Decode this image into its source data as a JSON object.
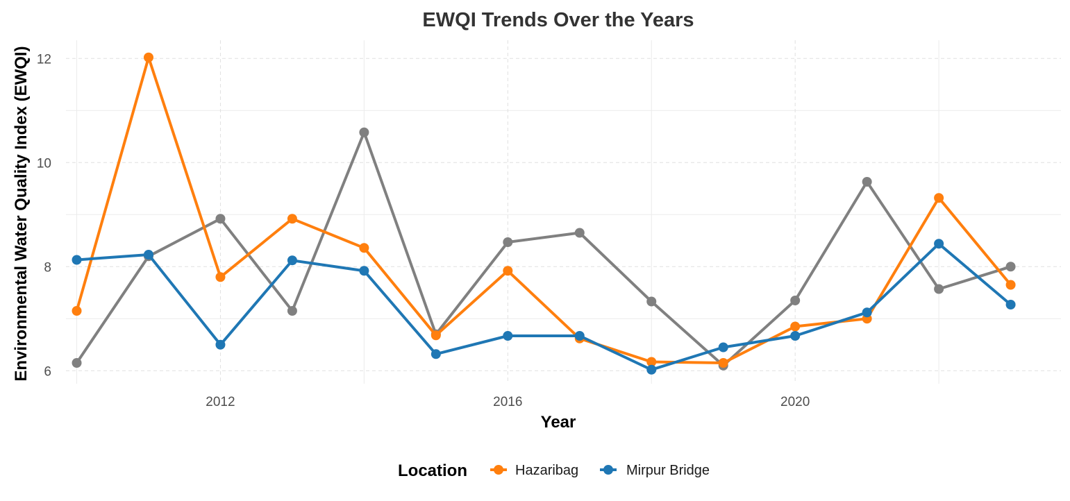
{
  "chart_data": {
    "type": "line",
    "title": "EWQI Trends Over the Years",
    "xlabel": "Year",
    "ylabel": "Environmental Water Quality Index (EWQI)",
    "x": [
      2010,
      2011,
      2012,
      2013,
      2014,
      2015,
      2016,
      2017,
      2018,
      2019,
      2020,
      2021,
      2022,
      2023
    ],
    "xticks": [
      2012,
      2016,
      2020
    ],
    "xtick_labels": [
      "2012",
      "2016",
      "2020"
    ],
    "yticks": [
      6,
      8,
      10,
      12
    ],
    "ytick_labels": [
      "6",
      "8",
      "10",
      "12"
    ],
    "xlim": [
      2009.85,
      2023.7
    ],
    "ylim": [
      5.75,
      12.35
    ],
    "grid": true,
    "legend": {
      "title": "Location",
      "position": "bottom",
      "entries": [
        "Hazaribag",
        "Mirpur Bridge"
      ]
    },
    "series": [
      {
        "key": "grey",
        "color": "#808080",
        "values": [
          6.15,
          8.2,
          8.92,
          7.15,
          10.58,
          6.7,
          8.47,
          8.65,
          7.33,
          6.1,
          7.35,
          9.63,
          7.57,
          8.0
        ]
      },
      {
        "key": "hazaribag",
        "name": "Hazaribag",
        "color": "#ff7f0e",
        "values": [
          7.15,
          12.02,
          7.8,
          8.92,
          8.36,
          6.68,
          7.92,
          6.62,
          6.17,
          6.15,
          6.85,
          7.0,
          9.32,
          7.65
        ]
      },
      {
        "key": "mirpur",
        "name": "Mirpur Bridge",
        "color": "#1f77b4",
        "values": [
          8.13,
          8.23,
          6.5,
          8.12,
          7.92,
          6.32,
          6.67,
          6.67,
          6.02,
          6.45,
          6.67,
          7.12,
          8.44,
          7.27
        ]
      }
    ]
  }
}
